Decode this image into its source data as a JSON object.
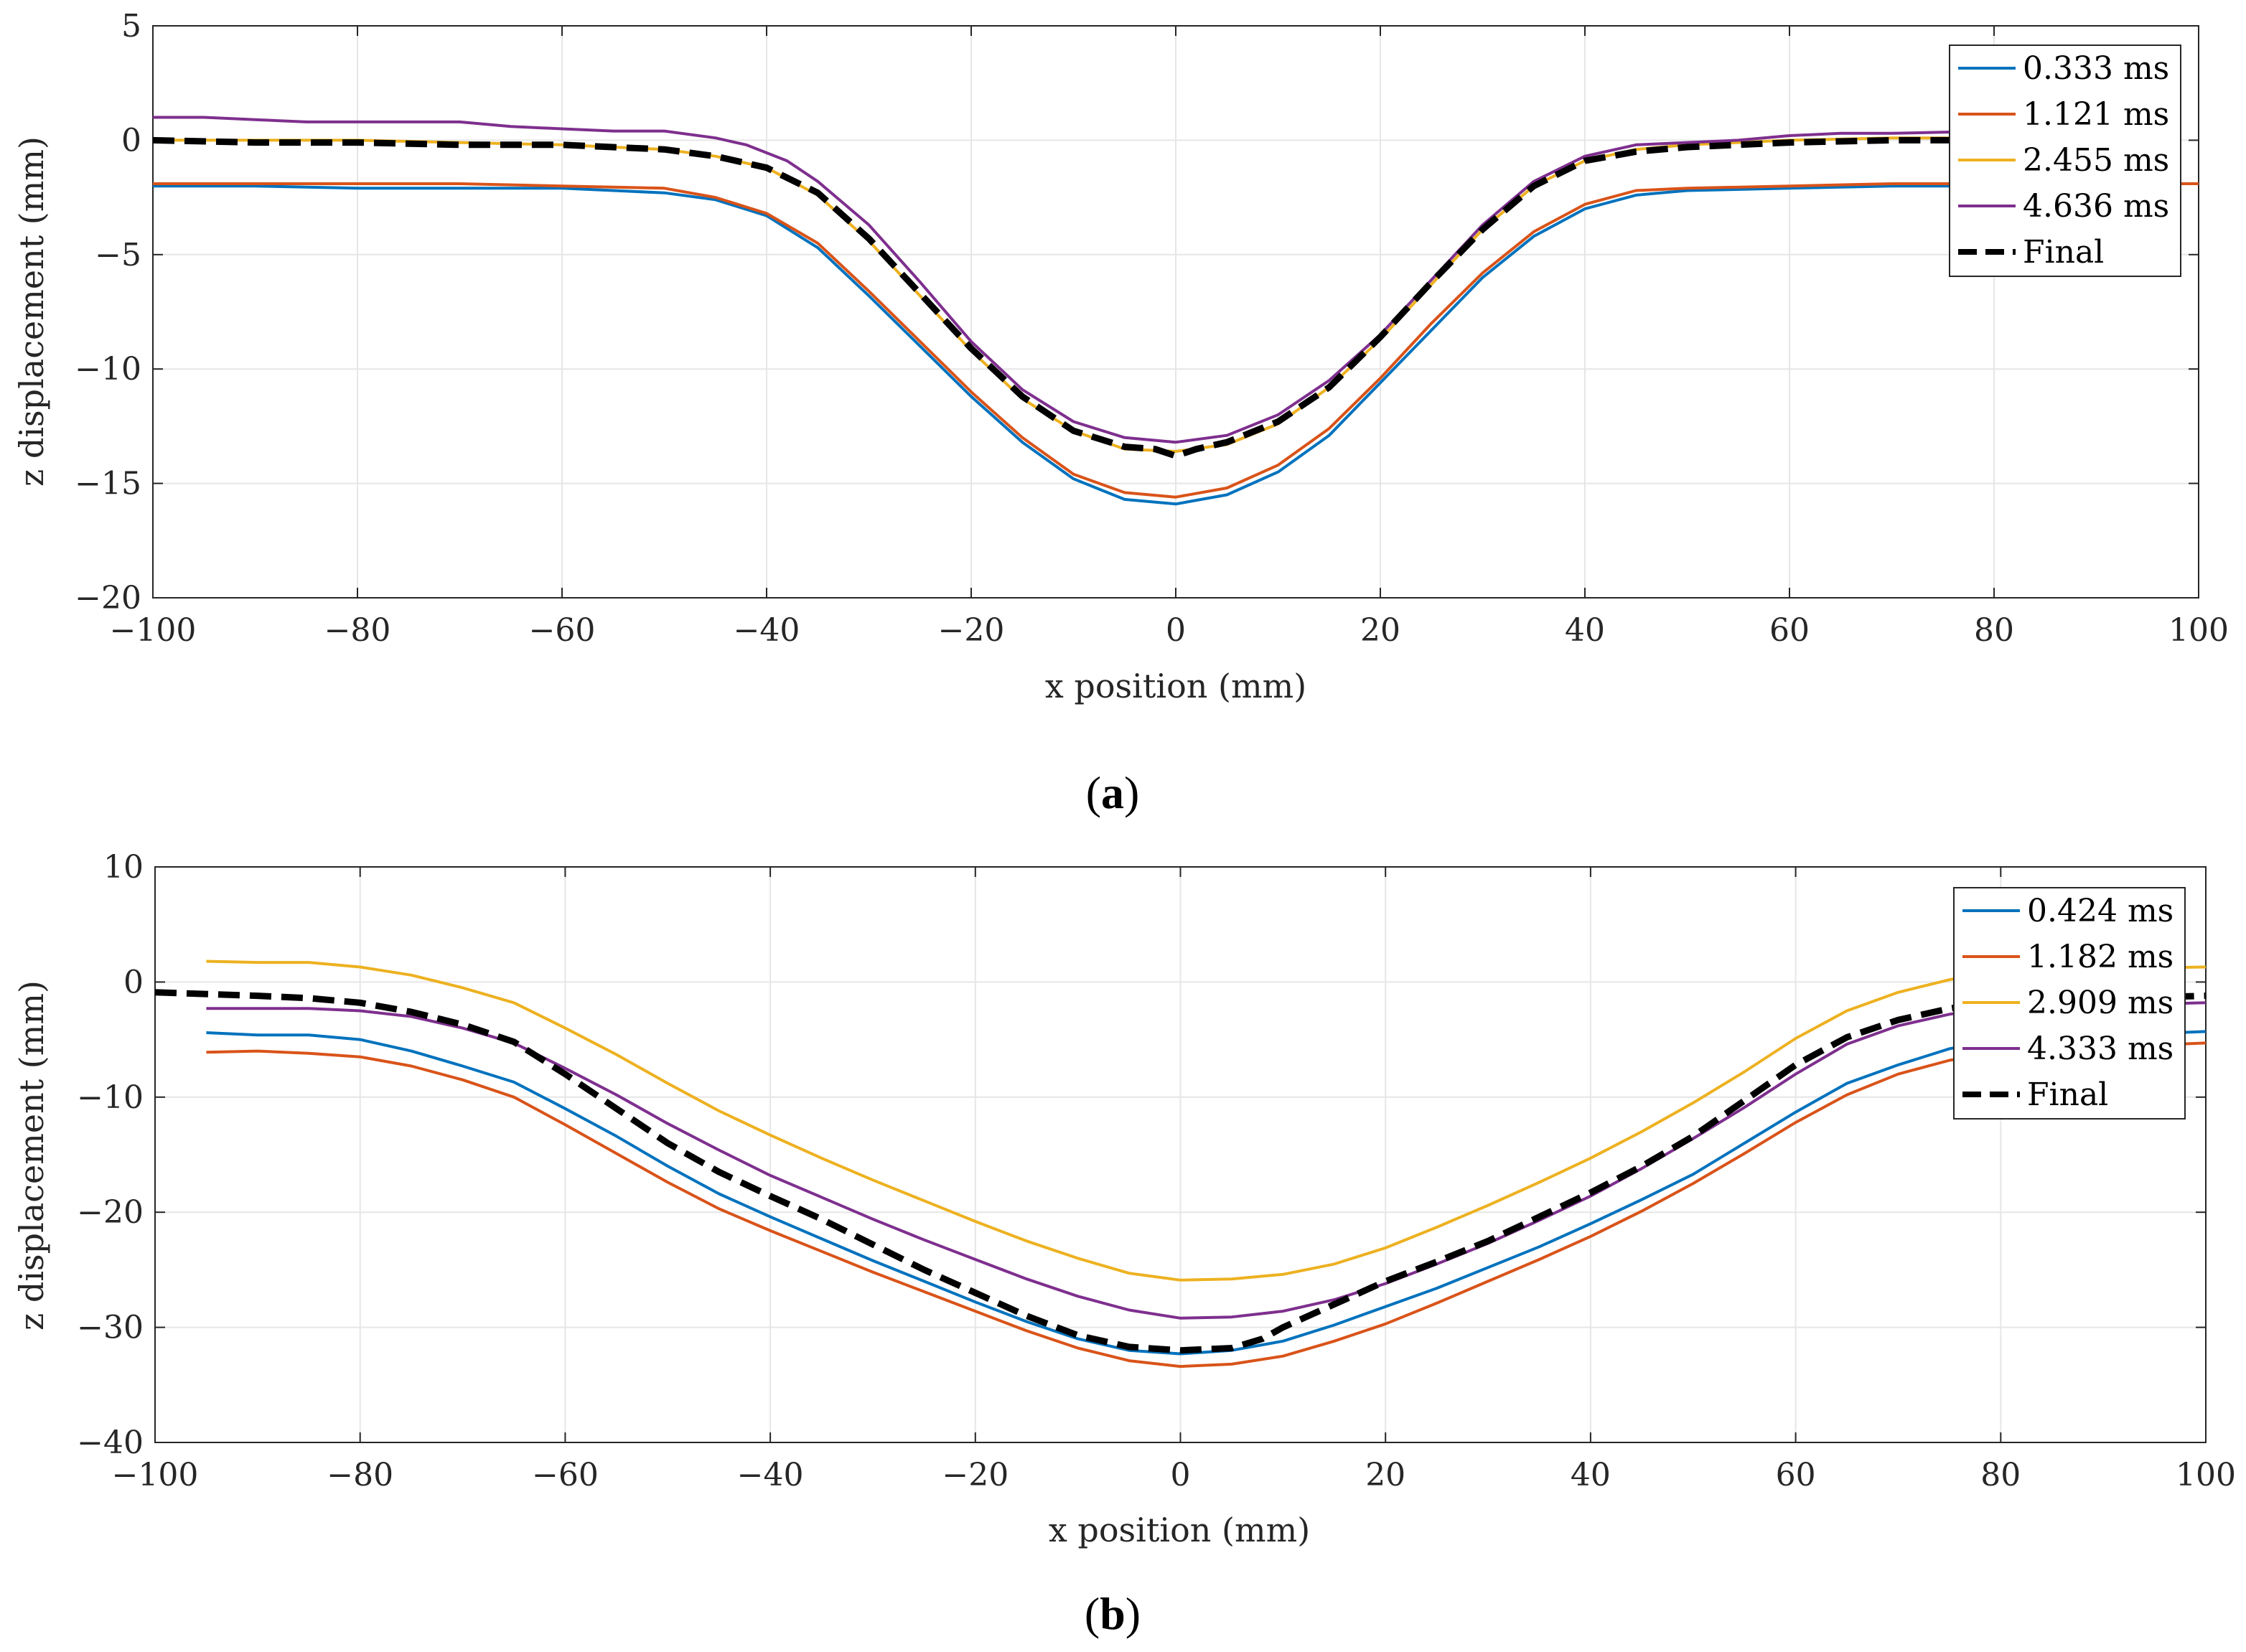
{
  "chart_data": [
    {
      "type": "line",
      "panel": "a",
      "caption": "a",
      "xlabel": "x position (mm)",
      "ylabel": "z displacement (mm)",
      "xlim": [
        -100,
        100
      ],
      "ylim": [
        -20,
        5
      ],
      "xticks": [
        -100,
        -80,
        -60,
        -40,
        -20,
        0,
        20,
        40,
        60,
        80,
        100
      ],
      "yticks": [
        5,
        0,
        -5,
        -10,
        -15,
        -20
      ],
      "tick_labels_x": [
        "−100",
        "−80",
        "−60",
        "−40",
        "−20",
        "0",
        "20",
        "40",
        "60",
        "80",
        "100"
      ],
      "tick_labels_y": [
        "5",
        "0",
        "−5",
        "−10",
        "−15",
        "−20"
      ],
      "grid": true,
      "legend_position": "top-right",
      "series": [
        {
          "name": "0.333 ms",
          "color": "#0072bd",
          "style": "solid",
          "x": [
            -100,
            -90,
            -80,
            -70,
            -60,
            -50,
            -45,
            -40,
            -35,
            -30,
            -25,
            -20,
            -15,
            -10,
            -5,
            0,
            5,
            10,
            15,
            20,
            25,
            30,
            35,
            40,
            45,
            50,
            60,
            70,
            80,
            88
          ],
          "y": [
            -2.0,
            -2.0,
            -2.1,
            -2.1,
            -2.1,
            -2.3,
            -2.6,
            -3.3,
            -4.7,
            -6.8,
            -9.0,
            -11.2,
            -13.2,
            -14.8,
            -15.7,
            -15.9,
            -15.5,
            -14.5,
            -12.9,
            -10.6,
            -8.3,
            -6.0,
            -4.2,
            -3.0,
            -2.4,
            -2.2,
            -2.1,
            -2.0,
            -2.0,
            -1.9
          ]
        },
        {
          "name": "1.121 ms",
          "color": "#d95319",
          "style": "solid",
          "x": [
            -100,
            -90,
            -80,
            -70,
            -60,
            -50,
            -45,
            -40,
            -35,
            -30,
            -25,
            -20,
            -15,
            -10,
            -5,
            0,
            5,
            10,
            15,
            20,
            25,
            30,
            35,
            40,
            45,
            50,
            60,
            70,
            80,
            100
          ],
          "y": [
            -1.9,
            -1.9,
            -1.9,
            -1.9,
            -2.0,
            -2.1,
            -2.5,
            -3.2,
            -4.5,
            -6.6,
            -8.8,
            -11.0,
            -13.0,
            -14.6,
            -15.4,
            -15.6,
            -15.2,
            -14.2,
            -12.6,
            -10.4,
            -8.0,
            -5.8,
            -4.0,
            -2.8,
            -2.2,
            -2.1,
            -2.0,
            -1.9,
            -1.9,
            -1.9
          ]
        },
        {
          "name": "2.455 ms",
          "color": "#edb120",
          "style": "solid",
          "x": [
            -100,
            -90,
            -80,
            -70,
            -60,
            -50,
            -45,
            -40,
            -35,
            -30,
            -25,
            -20,
            -15,
            -10,
            -5,
            0,
            5,
            10,
            15,
            20,
            25,
            30,
            35,
            40,
            45,
            50,
            60,
            70,
            80
          ],
          "y": [
            0.0,
            0.0,
            0.0,
            -0.1,
            -0.2,
            -0.4,
            -0.7,
            -1.2,
            -2.4,
            -4.4,
            -6.8,
            -9.2,
            -11.3,
            -12.7,
            -13.5,
            -13.6,
            -13.3,
            -12.4,
            -10.8,
            -8.7,
            -6.3,
            -3.9,
            -2.0,
            -0.9,
            -0.4,
            -0.2,
            0.0,
            0.1,
            0.1
          ]
        },
        {
          "name": "4.636 ms",
          "color": "#7e2f8e",
          "style": "solid",
          "x": [
            -100,
            -95,
            -90,
            -85,
            -80,
            -75,
            -70,
            -65,
            -60,
            -55,
            -50,
            -45,
            -42,
            -38,
            -35,
            -30,
            -25,
            -20,
            -15,
            -10,
            -5,
            0,
            5,
            10,
            15,
            20,
            25,
            30,
            35,
            40,
            45,
            50,
            55,
            60,
            65,
            70,
            80,
            97
          ],
          "y": [
            1.0,
            1.0,
            0.9,
            0.8,
            0.8,
            0.8,
            0.8,
            0.6,
            0.5,
            0.4,
            0.4,
            0.1,
            -0.2,
            -0.9,
            -1.8,
            -3.7,
            -6.2,
            -8.8,
            -10.9,
            -12.3,
            -13.0,
            -13.2,
            -12.9,
            -12.0,
            -10.5,
            -8.5,
            -6.1,
            -3.7,
            -1.8,
            -0.7,
            -0.2,
            -0.1,
            0.0,
            0.2,
            0.3,
            0.3,
            0.4,
            0.4
          ]
        },
        {
          "name": "Final",
          "color": "#000000",
          "style": "dashed",
          "x": [
            -100,
            -90,
            -80,
            -70,
            -60,
            -50,
            -45,
            -40,
            -35,
            -30,
            -25,
            -20,
            -15,
            -10,
            -5,
            -2,
            0,
            2,
            5,
            10,
            15,
            20,
            25,
            30,
            35,
            40,
            45,
            50,
            60,
            70,
            80
          ],
          "y": [
            0.0,
            -0.1,
            -0.1,
            -0.2,
            -0.2,
            -0.4,
            -0.7,
            -1.2,
            -2.3,
            -4.3,
            -6.7,
            -9.1,
            -11.2,
            -12.7,
            -13.4,
            -13.5,
            -13.8,
            -13.5,
            -13.2,
            -12.3,
            -10.8,
            -8.6,
            -6.2,
            -3.9,
            -2.0,
            -0.9,
            -0.5,
            -0.3,
            -0.1,
            0.0,
            0.0
          ]
        }
      ]
    },
    {
      "type": "line",
      "panel": "b",
      "caption": "b",
      "xlabel": "x position (mm)",
      "ylabel": "z displacement (mm)",
      "xlim": [
        -100,
        100
      ],
      "ylim": [
        -40,
        10
      ],
      "xticks": [
        -100,
        -80,
        -60,
        -40,
        -20,
        0,
        20,
        40,
        60,
        80,
        100
      ],
      "yticks": [
        10,
        0,
        -10,
        -20,
        -30,
        -40
      ],
      "tick_labels_x": [
        "−100",
        "−80",
        "−60",
        "−40",
        "−20",
        "0",
        "20",
        "40",
        "60",
        "80",
        "100"
      ],
      "tick_labels_y": [
        "10",
        "0",
        "−10",
        "−20",
        "−30",
        "−40"
      ],
      "grid": true,
      "legend_position": "top-right",
      "series": [
        {
          "name": "0.424 ms",
          "color": "#0072bd",
          "style": "solid",
          "x": [
            -95,
            -90,
            -85,
            -80,
            -75,
            -70,
            -65,
            -60,
            -55,
            -50,
            -45,
            -40,
            -35,
            -30,
            -25,
            -20,
            -15,
            -10,
            -5,
            0,
            5,
            10,
            15,
            20,
            25,
            30,
            35,
            40,
            45,
            50,
            55,
            60,
            65,
            70,
            75,
            80,
            100
          ],
          "y": [
            -4.4,
            -4.6,
            -4.6,
            -5.0,
            -6.0,
            -7.3,
            -8.7,
            -11.0,
            -13.4,
            -16.0,
            -18.4,
            -20.4,
            -22.3,
            -24.2,
            -26.0,
            -27.8,
            -29.5,
            -31.0,
            -32.0,
            -32.3,
            -32.0,
            -31.2,
            -29.8,
            -28.2,
            -26.6,
            -24.8,
            -23.0,
            -21.0,
            -18.9,
            -16.7,
            -14.0,
            -11.3,
            -8.8,
            -7.2,
            -5.8,
            -5.0,
            -4.3
          ]
        },
        {
          "name": "1.182 ms",
          "color": "#d95319",
          "style": "solid",
          "x": [
            -95,
            -90,
            -85,
            -80,
            -75,
            -70,
            -65,
            -60,
            -55,
            -50,
            -45,
            -40,
            -35,
            -30,
            -25,
            -20,
            -15,
            -10,
            -5,
            0,
            5,
            10,
            15,
            20,
            25,
            30,
            35,
            40,
            45,
            50,
            55,
            60,
            65,
            70,
            75,
            80,
            100
          ],
          "y": [
            -6.1,
            -6.0,
            -6.2,
            -6.5,
            -7.3,
            -8.5,
            -10.0,
            -12.4,
            -14.9,
            -17.4,
            -19.7,
            -21.6,
            -23.4,
            -25.2,
            -26.9,
            -28.6,
            -30.3,
            -31.8,
            -32.9,
            -33.4,
            -33.2,
            -32.5,
            -31.2,
            -29.7,
            -27.9,
            -26.0,
            -24.1,
            -22.1,
            -19.9,
            -17.5,
            -14.9,
            -12.2,
            -9.8,
            -8.0,
            -6.8,
            -6.0,
            -5.3
          ]
        },
        {
          "name": "2.909 ms",
          "color": "#edb120",
          "style": "solid",
          "x": [
            -95,
            -90,
            -85,
            -80,
            -75,
            -70,
            -65,
            -60,
            -55,
            -50,
            -45,
            -40,
            -35,
            -30,
            -25,
            -20,
            -15,
            -10,
            -5,
            0,
            5,
            10,
            15,
            20,
            25,
            30,
            35,
            40,
            45,
            50,
            55,
            60,
            65,
            70,
            75,
            80,
            100
          ],
          "y": [
            1.8,
            1.7,
            1.7,
            1.3,
            0.6,
            -0.5,
            -1.8,
            -4.0,
            -6.3,
            -8.8,
            -11.2,
            -13.3,
            -15.3,
            -17.2,
            -19.0,
            -20.8,
            -22.5,
            -24.0,
            -25.3,
            -25.9,
            -25.8,
            -25.4,
            -24.5,
            -23.1,
            -21.3,
            -19.4,
            -17.4,
            -15.3,
            -13.0,
            -10.5,
            -7.8,
            -4.9,
            -2.5,
            -0.9,
            0.2,
            1.0,
            1.3
          ]
        },
        {
          "name": "4.333 ms",
          "color": "#7e2f8e",
          "style": "solid",
          "x": [
            -95,
            -90,
            -85,
            -80,
            -75,
            -70,
            -65,
            -60,
            -55,
            -50,
            -45,
            -40,
            -35,
            -30,
            -25,
            -20,
            -15,
            -10,
            -5,
            0,
            5,
            10,
            15,
            20,
            25,
            30,
            35,
            40,
            45,
            50,
            55,
            60,
            65,
            70,
            75,
            80,
            100
          ],
          "y": [
            -2.3,
            -2.3,
            -2.3,
            -2.5,
            -3.0,
            -4.0,
            -5.3,
            -7.5,
            -9.8,
            -12.3,
            -14.6,
            -16.8,
            -18.7,
            -20.6,
            -22.4,
            -24.1,
            -25.8,
            -27.3,
            -28.5,
            -29.2,
            -29.1,
            -28.6,
            -27.6,
            -26.2,
            -24.5,
            -22.7,
            -20.7,
            -18.6,
            -16.2,
            -13.6,
            -10.9,
            -8.0,
            -5.4,
            -3.8,
            -2.8,
            -2.2,
            -1.8
          ]
        },
        {
          "name": "Final",
          "color": "#000000",
          "style": "dashed",
          "x": [
            -100,
            -90,
            -85,
            -80,
            -75,
            -70,
            -65,
            -60,
            -55,
            -50,
            -45,
            -40,
            -35,
            -30,
            -25,
            -20,
            -15,
            -10,
            -5,
            0,
            5,
            8,
            10,
            15,
            20,
            25,
            30,
            35,
            40,
            45,
            50,
            55,
            60,
            65,
            70,
            75,
            80,
            100
          ],
          "y": [
            -0.9,
            -1.2,
            -1.4,
            -1.8,
            -2.6,
            -3.7,
            -5.2,
            -8.0,
            -11.0,
            -14.0,
            -16.5,
            -18.6,
            -20.6,
            -22.8,
            -25.0,
            -27.0,
            -29.0,
            -30.7,
            -31.7,
            -32.0,
            -31.8,
            -31.0,
            -30.0,
            -28.0,
            -26.0,
            -24.3,
            -22.5,
            -20.4,
            -18.3,
            -16.0,
            -13.4,
            -10.3,
            -7.2,
            -4.8,
            -3.3,
            -2.3,
            -1.7,
            -1.2
          ]
        }
      ]
    }
  ]
}
